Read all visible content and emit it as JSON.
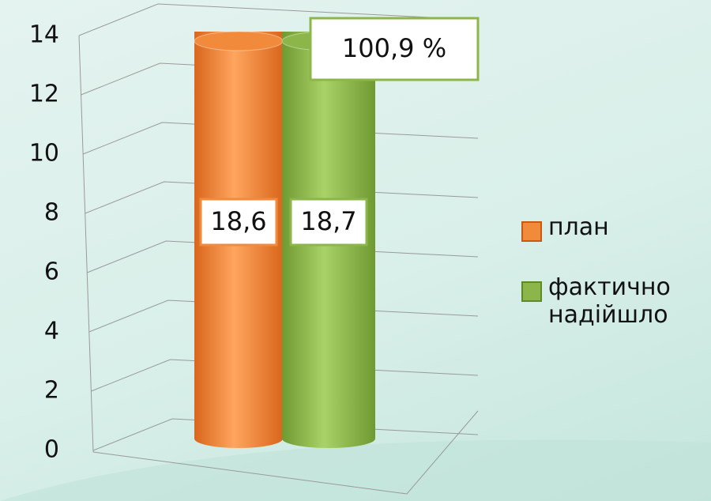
{
  "chart_data": {
    "type": "bar",
    "categories": [
      null
    ],
    "series": [
      {
        "name": "план",
        "color": "#f28a3c",
        "values": [
          18.6
        ],
        "value_labels": [
          "18,6"
        ]
      },
      {
        "name": "фактично надійшло",
        "color": "#8cb64a",
        "values": [
          18.7
        ],
        "value_labels": [
          "18,7"
        ]
      }
    ],
    "annotation": "100,9 %",
    "ylim": [
      0,
      14
    ],
    "yticks": [
      0,
      2,
      4,
      6,
      8,
      10,
      12,
      14
    ],
    "grid": true,
    "legend": "right"
  }
}
